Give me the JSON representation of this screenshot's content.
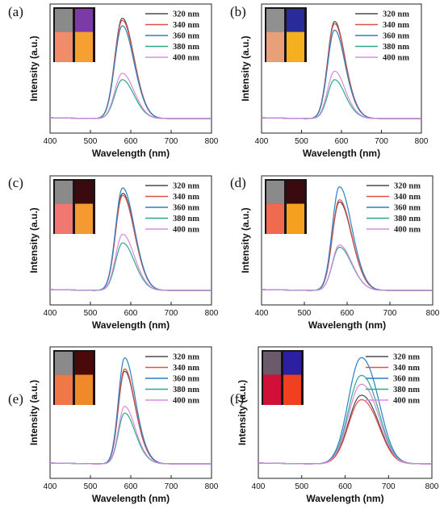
{
  "chart_data": [
    {
      "type": "line",
      "panel_label": "(a)",
      "xlabel": "Wavelength (nm)",
      "ylabel": "Intensity (a.u.)",
      "xlim": [
        400,
        800
      ],
      "xticks": [
        400,
        500,
        600,
        700,
        800
      ],
      "peak": 578,
      "width_left": 18,
      "width_right": 26,
      "ymax": 100,
      "photo": {
        "left_top": "#8a8a8a",
        "left_bottom": "#f08c6a",
        "right_top": "#7a3aa8",
        "right_bottom": "#f5a030"
      },
      "series": [
        {
          "name": "320 nm",
          "color": "#4a4a4a",
          "peak_intensity": 93
        },
        {
          "name": "340 nm",
          "color": "#e0504a",
          "peak_intensity": 91
        },
        {
          "name": "360 nm",
          "color": "#2b7fc4",
          "peak_intensity": 86
        },
        {
          "name": "380 nm",
          "color": "#2fa88a",
          "peak_intensity": 36
        },
        {
          "name": "400 nm",
          "color": "#d98ae0",
          "peak_intensity": 42
        }
      ]
    },
    {
      "type": "line",
      "panel_label": "(b)",
      "xlabel": "Wavelength (nm)",
      "ylabel": "Intensity (a.u.)",
      "xlim": [
        400,
        800
      ],
      "xticks": [
        400,
        500,
        600,
        700,
        800
      ],
      "peak": 582,
      "width_left": 17,
      "width_right": 24,
      "ymax": 100,
      "photo": {
        "left_top": "#909090",
        "left_bottom": "#e8a078",
        "right_top": "#2a2a9a",
        "right_bottom": "#f5b020"
      },
      "series": [
        {
          "name": "320 nm",
          "color": "#4a4a4a",
          "peak_intensity": 90
        },
        {
          "name": "340 nm",
          "color": "#e0504a",
          "peak_intensity": 88
        },
        {
          "name": "360 nm",
          "color": "#2b7fc4",
          "peak_intensity": 82
        },
        {
          "name": "380 nm",
          "color": "#2fa88a",
          "peak_intensity": 36
        },
        {
          "name": "400 nm",
          "color": "#d98ae0",
          "peak_intensity": 44
        }
      ]
    },
    {
      "type": "line",
      "panel_label": "(c)",
      "xlabel": "Wavelength (nm)",
      "ylabel": "Intensity (a.u.)",
      "xlim": [
        400,
        800
      ],
      "xticks": [
        400,
        500,
        600,
        700,
        800
      ],
      "peak": 579,
      "width_left": 17,
      "width_right": 26,
      "ymax": 100,
      "photo": {
        "left_top": "#8a8a8a",
        "left_bottom": "#f07870",
        "right_top": "#3a0a10",
        "right_bottom": "#f59a30"
      },
      "series": [
        {
          "name": "320 nm",
          "color": "#4a4a4a",
          "peak_intensity": 90
        },
        {
          "name": "340 nm",
          "color": "#e0504a",
          "peak_intensity": 88
        },
        {
          "name": "360 nm",
          "color": "#2b7fc4",
          "peak_intensity": 95
        },
        {
          "name": "380 nm",
          "color": "#2fa88a",
          "peak_intensity": 44
        },
        {
          "name": "400 nm",
          "color": "#d98ae0",
          "peak_intensity": 52
        }
      ]
    },
    {
      "type": "line",
      "panel_label": "(d)",
      "xlabel": "Wavelength (nm)",
      "ylabel": "Intensity (a.u.)",
      "xlim": [
        400,
        800
      ],
      "xticks": [
        400,
        500,
        600,
        700,
        800
      ],
      "peak": 581,
      "width_left": 16,
      "width_right": 26,
      "ymax": 100,
      "photo": {
        "left_top": "#8a8a8a",
        "left_bottom": "#f06a50",
        "right_top": "#3a0a10",
        "right_bottom": "#f5a020"
      },
      "series": [
        {
          "name": "320 nm",
          "color": "#4a4a4a",
          "peak_intensity": 82
        },
        {
          "name": "340 nm",
          "color": "#e0504a",
          "peak_intensity": 84
        },
        {
          "name": "360 nm",
          "color": "#2b7fc4",
          "peak_intensity": 96
        },
        {
          "name": "380 nm",
          "color": "#2fa88a",
          "peak_intensity": 40
        },
        {
          "name": "400 nm",
          "color": "#d98ae0",
          "peak_intensity": 42
        }
      ]
    },
    {
      "type": "line",
      "panel_label": "(e)",
      "xlabel": "Wavelength (nm)",
      "ylabel": "Intensity (a.u.)",
      "xlim": [
        400,
        800
      ],
      "xticks": [
        400,
        500,
        600,
        700,
        800
      ],
      "peak": 584,
      "width_left": 15,
      "width_right": 24,
      "ymax": 100,
      "photo": {
        "left_top": "#8a8a8a",
        "left_bottom": "#f07848",
        "right_top": "#4a0a0a",
        "right_bottom": "#f08a28"
      },
      "series": [
        {
          "name": "320 nm",
          "color": "#4a4a4a",
          "peak_intensity": 84
        },
        {
          "name": "340 nm",
          "color": "#e0504a",
          "peak_intensity": 86
        },
        {
          "name": "360 nm",
          "color": "#2b7fc4",
          "peak_intensity": 96
        },
        {
          "name": "380 nm",
          "color": "#2fa88a",
          "peak_intensity": 46
        },
        {
          "name": "400 nm",
          "color": "#d98ae0",
          "peak_intensity": 52
        }
      ]
    },
    {
      "type": "line",
      "panel_label": "(f)",
      "xlabel": "Wavelength (nm)",
      "ylabel": "Intensity (a.u.)",
      "xlim": [
        400,
        800
      ],
      "xticks": [
        400,
        500,
        600,
        700,
        800
      ],
      "peak": 635,
      "width_left": 28,
      "width_right": 36,
      "ymax": 100,
      "photo": {
        "left_top": "#6a5a6a",
        "left_bottom": "#d01038",
        "right_top": "#2a20a0",
        "right_bottom": "#f04020"
      },
      "series": [
        {
          "name": "320 nm",
          "color": "#4a4a4a",
          "peak_intensity": 62
        },
        {
          "name": "340 nm",
          "color": "#e0504a",
          "peak_intensity": 58
        },
        {
          "name": "360 nm",
          "color": "#2b7fc4",
          "peak_intensity": 96
        },
        {
          "name": "380 nm",
          "color": "#2fa88a",
          "peak_intensity": 80
        },
        {
          "name": "400 nm",
          "color": "#d98ae0",
          "peak_intensity": 72
        }
      ]
    }
  ]
}
